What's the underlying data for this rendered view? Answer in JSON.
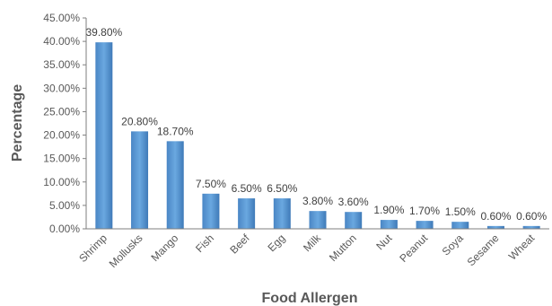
{
  "chart_data": {
    "type": "bar",
    "title": "",
    "xlabel": "Food Allergen",
    "ylabel": "Percentage",
    "ylim": [
      0,
      45
    ],
    "yticks": [
      0,
      5,
      10,
      15,
      20,
      25,
      30,
      35,
      40,
      45
    ],
    "ytick_labels": [
      "0.00%",
      "5.00%",
      "10.00%",
      "15.00%",
      "20.00%",
      "25.00%",
      "30.00%",
      "35.00%",
      "40.00%",
      "45.00%"
    ],
    "categories": [
      "Shrimp",
      "Mollusks",
      "Mango",
      "Fish",
      "Beef",
      "Egg",
      "Milk",
      "Mutton",
      "Nut",
      "Peanut",
      "Soya",
      "Sesame",
      "Wheat"
    ],
    "values": [
      39.8,
      20.8,
      18.7,
      7.5,
      6.5,
      6.5,
      3.8,
      3.6,
      1.9,
      1.7,
      1.5,
      0.6,
      0.6
    ],
    "data_labels": [
      "39.80%",
      "20.80%",
      "18.70%",
      "7.50%",
      "6.50%",
      "6.50%",
      "3.80%",
      "3.60%",
      "1.90%",
      "1.70%",
      "1.50%",
      "0.60%",
      "0.60%"
    ],
    "grid": false,
    "legend": "none",
    "bar_color": "#5b9bd5"
  }
}
